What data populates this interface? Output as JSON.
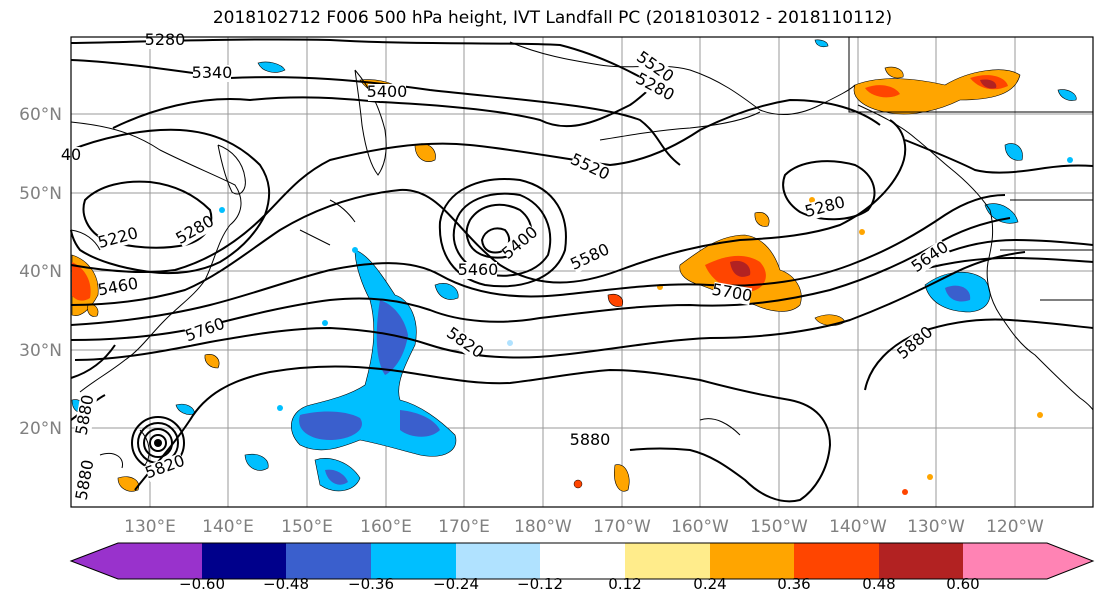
{
  "title": "2018102712 F006 500 hPa height, IVT Landfall PC (2018103012 - 2018110112)",
  "lat_labels": [
    "60°N",
    "50°N",
    "40°N",
    "30°N",
    "20°N"
  ],
  "lon_labels": [
    "130°E",
    "140°E",
    "150°E",
    "160°E",
    "170°E",
    "180°W",
    "170°W",
    "160°W",
    "150°W",
    "140°W",
    "130°W",
    "120°W"
  ],
  "contour_labels": [
    "5280",
    "5340",
    "5400",
    "5520",
    "5280",
    "40",
    "5520",
    "5220",
    "5280",
    "5400",
    "5460",
    "5580",
    "5280",
    "5640",
    "5460",
    "5700",
    "5760",
    "5820",
    "5880",
    "5880",
    "5880",
    "5820",
    "5880"
  ],
  "colorbar": {
    "ticks": [
      "−0.60",
      "−0.48",
      "−0.36",
      "−0.24",
      "−0.12",
      "0.12",
      "0.24",
      "0.36",
      "0.48",
      "0.60"
    ],
    "colors": [
      "#9932cc",
      "#00008b",
      "#3a5fcd",
      "#00bfff",
      "#b0e2ff",
      "#ffffff",
      "#ffec8b",
      "#ffa500",
      "#ff4500",
      "#b22222",
      "#ff83b4"
    ]
  }
}
